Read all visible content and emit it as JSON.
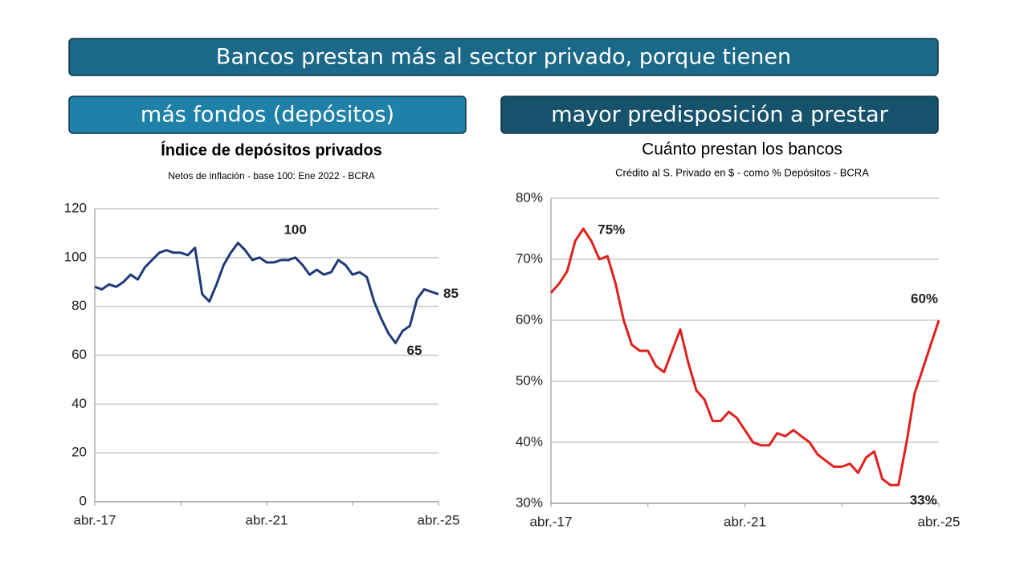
{
  "banner": "Bancos prestan más al sector privado, porque tienen",
  "panels": [
    "más fondos (depósitos)",
    "mayor predisposición a prestar"
  ],
  "chart_data": [
    {
      "type": "line",
      "title": "Índice de depósitos privados",
      "subtitle": "Netos de inflación - base 100: Ene 2022 - BCRA",
      "categories": [
        "abr.-17",
        null,
        null,
        null,
        null,
        null,
        null,
        null,
        null,
        null,
        null,
        null,
        null,
        null,
        null,
        null,
        null,
        null,
        null,
        null,
        null,
        null,
        null,
        null,
        "abr.-21",
        null,
        null,
        null,
        null,
        null,
        null,
        null,
        null,
        null,
        null,
        null,
        null,
        null,
        null,
        null,
        null,
        null,
        null,
        null,
        null,
        null,
        null,
        null,
        "abr.-25"
      ],
      "values": [
        88,
        87,
        89,
        88,
        90,
        93,
        91,
        96,
        99,
        102,
        103,
        102,
        102,
        101,
        104,
        85,
        82,
        89,
        97,
        102,
        106,
        103,
        99,
        100,
        98,
        98,
        99,
        99,
        100,
        97,
        93,
        95,
        93,
        94,
        99,
        97,
        93,
        94,
        92,
        82,
        75,
        69,
        65,
        70,
        72,
        83,
        87,
        86,
        85
      ],
      "color": "#1f3a78",
      "ylim": [
        0,
        120
      ],
      "yticks": [
        0,
        20,
        40,
        60,
        80,
        100,
        120
      ],
      "grid": true
    },
    {
      "type": "line",
      "title": "Cuánto prestan los bancos",
      "subtitle": "Crédito al S. Privado en $ - como % Depósitos - BCRA",
      "categories": [
        "abr.-17",
        null,
        null,
        null,
        null,
        null,
        null,
        null,
        null,
        null,
        null,
        null,
        null,
        null,
        null,
        null,
        null,
        null,
        null,
        null,
        null,
        null,
        null,
        null,
        "abr.-21",
        null,
        null,
        null,
        null,
        null,
        null,
        null,
        null,
        null,
        null,
        null,
        null,
        null,
        null,
        null,
        null,
        null,
        null,
        null,
        null,
        null,
        null,
        null,
        "abr.-25"
      ],
      "values": [
        64.5,
        66,
        68,
        73,
        75,
        73,
        70,
        70.5,
        66,
        60,
        56,
        55,
        55,
        52.5,
        51.5,
        55,
        58.5,
        53,
        48.5,
        47,
        43.5,
        43.5,
        45,
        44,
        42,
        40,
        39.5,
        39.5,
        41.5,
        41,
        42,
        41,
        40,
        38,
        37,
        36,
        36,
        36.5,
        35,
        37.5,
        38.5,
        34,
        33,
        33,
        40,
        48,
        52,
        56,
        60
      ],
      "value_labels": [
        null,
        null,
        null,
        null,
        "75%",
        null,
        null,
        null,
        null,
        null,
        null,
        null,
        null,
        null,
        null,
        null,
        null,
        null,
        null,
        null,
        null,
        null,
        null,
        null,
        null,
        null,
        null,
        null,
        null,
        null,
        null,
        null,
        null,
        null,
        null,
        null,
        null,
        null,
        null,
        null,
        null,
        null,
        null,
        "33%",
        null,
        null,
        null,
        null,
        "60%"
      ],
      "color": "#e0201c",
      "ylim": [
        30,
        80
      ],
      "yticks": [
        {
          "value": 30,
          "label": "30%"
        },
        {
          "value": 40,
          "label": "40%"
        },
        {
          "value": 50,
          "label": "50%"
        },
        {
          "value": 60,
          "label": "60%"
        },
        {
          "value": 70,
          "label": "70%"
        },
        {
          "value": 80,
          "label": "80%"
        }
      ],
      "grid": true
    }
  ]
}
